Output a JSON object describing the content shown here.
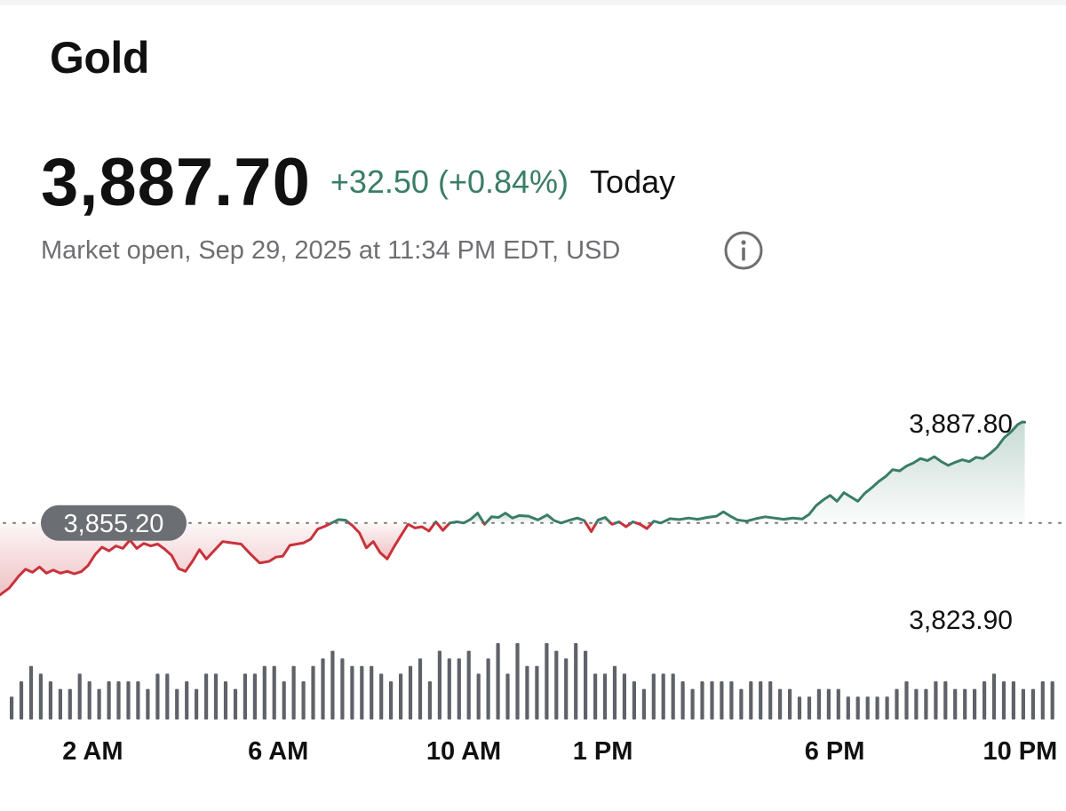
{
  "header": {
    "title": "Gold",
    "price": "3,887.70",
    "change": "+32.50 (+0.84%)",
    "period": "Today",
    "market_status": "Market open, Sep 29, 2025 at 11:34 PM EDT, USD",
    "info_icon": "info-circle-icon"
  },
  "colors": {
    "up": "#3a7d68",
    "down": "#c9323b",
    "baseline_badge": "#6b6e73",
    "volume": "#5f6268",
    "title_text": "#111111",
    "muted_text": "#6f6f73"
  },
  "chart_data": {
    "type": "line",
    "title": "Gold",
    "previous_close": 3855.2,
    "previous_close_label": "3,855.20",
    "high_label": "3,887.80",
    "low_label": "3,823.90",
    "high": 3887.8,
    "low": 3823.9,
    "x_range_hours": [
      0,
      23.57
    ],
    "x_tick_labels": [
      {
        "label": "2 AM",
        "hour": 2
      },
      {
        "label": "6 AM",
        "hour": 6
      },
      {
        "label": "10 AM",
        "hour": 10
      },
      {
        "label": "1 PM",
        "hour": 13
      },
      {
        "label": "6 PM",
        "hour": 18
      },
      {
        "label": "10 PM",
        "hour": 22
      }
    ],
    "series": [
      {
        "values": [
          [
            0.0,
            3832.0
          ],
          [
            0.2,
            3834.2
          ],
          [
            0.4,
            3838.0
          ],
          [
            0.55,
            3840.3
          ],
          [
            0.7,
            3839.3
          ],
          [
            0.85,
            3841.0
          ],
          [
            1.0,
            3839.0
          ],
          [
            1.15,
            3840.0
          ],
          [
            1.3,
            3839.0
          ],
          [
            1.45,
            3839.6
          ],
          [
            1.6,
            3838.8
          ],
          [
            1.75,
            3839.5
          ],
          [
            1.9,
            3841.5
          ],
          [
            2.05,
            3845.0
          ],
          [
            2.2,
            3847.4
          ],
          [
            2.35,
            3846.2
          ],
          [
            2.5,
            3847.8
          ],
          [
            2.65,
            3847.0
          ],
          [
            2.8,
            3849.7
          ],
          [
            2.95,
            3847.0
          ],
          [
            3.1,
            3848.6
          ],
          [
            3.25,
            3847.8
          ],
          [
            3.4,
            3848.4
          ],
          [
            3.55,
            3846.8
          ],
          [
            3.7,
            3844.8
          ],
          [
            3.85,
            3840.5
          ],
          [
            4.0,
            3839.6
          ],
          [
            4.15,
            3842.8
          ],
          [
            4.3,
            3846.6
          ],
          [
            4.45,
            3843.6
          ],
          [
            4.6,
            3846.0
          ],
          [
            4.8,
            3849.2
          ],
          [
            5.0,
            3848.8
          ],
          [
            5.2,
            3848.4
          ],
          [
            5.4,
            3845.2
          ],
          [
            5.6,
            3842.3
          ],
          [
            5.8,
            3842.8
          ],
          [
            5.95,
            3844.2
          ],
          [
            6.1,
            3844.5
          ],
          [
            6.25,
            3848.0
          ],
          [
            6.4,
            3848.4
          ],
          [
            6.55,
            3848.8
          ],
          [
            6.7,
            3850.0
          ],
          [
            6.85,
            3853.2
          ],
          [
            7.0,
            3854.1
          ],
          [
            7.15,
            3855.2
          ],
          [
            7.3,
            3856.3
          ],
          [
            7.45,
            3856.1
          ],
          [
            7.6,
            3854.4
          ],
          [
            7.75,
            3852.0
          ],
          [
            7.9,
            3847.2
          ],
          [
            8.05,
            3849.2
          ],
          [
            8.2,
            3845.6
          ],
          [
            8.35,
            3843.6
          ],
          [
            8.5,
            3847.6
          ],
          [
            8.65,
            3851.2
          ],
          [
            8.8,
            3854.8
          ],
          [
            8.95,
            3853.6
          ],
          [
            9.1,
            3854.0
          ],
          [
            9.25,
            3852.6
          ],
          [
            9.4,
            3855.6
          ],
          [
            9.55,
            3852.8
          ],
          [
            9.7,
            3855.2
          ],
          [
            9.85,
            3855.6
          ],
          [
            10.0,
            3855.2
          ],
          [
            10.15,
            3856.4
          ],
          [
            10.3,
            3858.4
          ],
          [
            10.45,
            3854.8
          ],
          [
            10.6,
            3857.2
          ],
          [
            10.75,
            3857.0
          ],
          [
            10.9,
            3858.4
          ],
          [
            11.05,
            3856.8
          ],
          [
            11.2,
            3857.6
          ],
          [
            11.4,
            3857.4
          ],
          [
            11.6,
            3856.2
          ],
          [
            11.8,
            3857.8
          ],
          [
            11.95,
            3856.0
          ],
          [
            12.1,
            3855.2
          ],
          [
            12.3,
            3856.2
          ],
          [
            12.45,
            3856.8
          ],
          [
            12.6,
            3856.0
          ],
          [
            12.75,
            3852.4
          ],
          [
            12.9,
            3856.2
          ],
          [
            13.05,
            3857.0
          ],
          [
            13.2,
            3854.8
          ],
          [
            13.35,
            3855.6
          ],
          [
            13.5,
            3854.0
          ],
          [
            13.65,
            3855.6
          ],
          [
            13.8,
            3854.8
          ],
          [
            13.95,
            3853.4
          ],
          [
            14.1,
            3855.8
          ],
          [
            14.25,
            3855.2
          ],
          [
            14.45,
            3856.6
          ],
          [
            14.65,
            3856.3
          ],
          [
            14.85,
            3856.8
          ],
          [
            15.05,
            3856.4
          ],
          [
            15.25,
            3857.0
          ],
          [
            15.45,
            3857.4
          ],
          [
            15.6,
            3858.8
          ],
          [
            15.75,
            3857.4
          ],
          [
            15.9,
            3856.2
          ],
          [
            16.1,
            3855.8
          ],
          [
            16.3,
            3856.6
          ],
          [
            16.5,
            3857.2
          ],
          [
            16.7,
            3856.8
          ],
          [
            16.9,
            3856.4
          ],
          [
            17.1,
            3856.8
          ],
          [
            17.3,
            3856.5
          ],
          [
            17.45,
            3858.0
          ],
          [
            17.6,
            3860.8
          ],
          [
            17.75,
            3862.6
          ],
          [
            17.9,
            3864.1
          ],
          [
            18.05,
            3862.2
          ],
          [
            18.2,
            3865.0
          ],
          [
            18.35,
            3863.6
          ],
          [
            18.5,
            3862.2
          ],
          [
            18.65,
            3864.8
          ],
          [
            18.8,
            3866.6
          ],
          [
            18.95,
            3868.6
          ],
          [
            19.1,
            3870.2
          ],
          [
            19.25,
            3872.4
          ],
          [
            19.4,
            3872.0
          ],
          [
            19.55,
            3873.6
          ],
          [
            19.7,
            3874.6
          ],
          [
            19.85,
            3876.0
          ],
          [
            20.0,
            3875.3
          ],
          [
            20.15,
            3876.6
          ],
          [
            20.3,
            3875.0
          ],
          [
            20.45,
            3873.8
          ],
          [
            20.6,
            3874.8
          ],
          [
            20.75,
            3875.6
          ],
          [
            20.9,
            3875.0
          ],
          [
            21.05,
            3876.4
          ],
          [
            21.2,
            3876.0
          ],
          [
            21.35,
            3877.6
          ],
          [
            21.5,
            3879.6
          ],
          [
            21.65,
            3882.6
          ],
          [
            21.8,
            3884.6
          ],
          [
            21.95,
            3887.0
          ],
          [
            22.05,
            3887.8
          ],
          [
            22.1,
            3887.7
          ]
        ]
      }
    ],
    "volume": [
      3,
      5,
      7,
      6,
      5,
      4,
      4,
      6,
      5,
      4,
      5,
      5,
      5,
      5,
      4,
      6,
      6,
      4,
      5,
      4,
      6,
      6,
      5,
      4,
      6,
      6,
      7,
      7,
      5,
      7,
      5,
      7,
      8,
      9,
      8,
      7,
      7,
      7,
      6,
      5,
      6,
      7,
      8,
      5,
      9,
      8,
      8,
      9,
      6,
      8,
      10,
      6,
      10,
      7,
      7,
      10,
      9,
      8,
      10,
      9,
      6,
      6,
      7,
      6,
      5,
      4,
      6,
      6,
      6,
      5,
      4,
      5,
      5,
      5,
      5,
      4,
      5,
      5,
      5,
      4,
      4,
      3,
      3,
      4,
      4,
      4,
      3,
      3,
      3,
      3,
      3,
      4,
      5,
      4,
      4,
      5,
      5,
      4,
      4,
      4,
      5,
      6,
      5,
      5,
      4,
      4,
      5,
      5
    ]
  }
}
